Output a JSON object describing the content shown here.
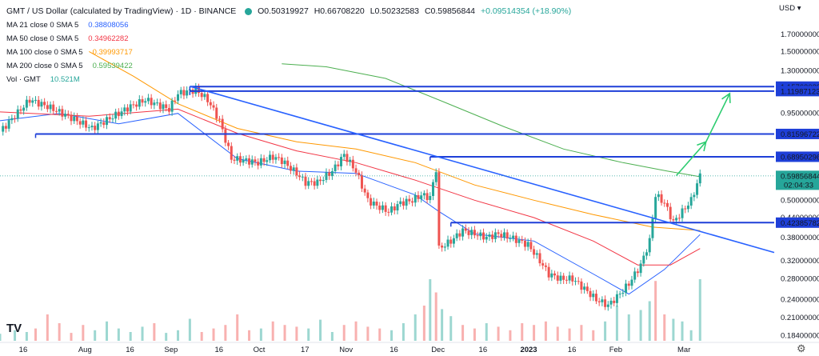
{
  "header": {
    "title": "GMT / US Dollar (calculated by TradingView) · 1D · BINANCE",
    "ohlc": {
      "o": "O0.50319927",
      "h": "H0.66708220",
      "l": "L0.50232583",
      "c": "C0.59856844",
      "chg": "+0.09514354 (+18.90%)"
    },
    "currency": "USD",
    "indicators": [
      {
        "label": "MA 21 close 0 SMA 5",
        "value": "0.38808056",
        "color": "#2962ff"
      },
      {
        "label": "MA 50 close 0 SMA 5",
        "value": "0.34962282",
        "color": "#f23645"
      },
      {
        "label": "MA 100 close 0 SMA 5",
        "value": "0.39993717",
        "color": "#ff9800"
      },
      {
        "label": "MA 200 close 0 SMA 5",
        "value": "0.59539422",
        "color": "#4caf50"
      },
      {
        "label": "Vol · GMT",
        "value": "10.521M",
        "color": "#26a69a"
      }
    ]
  },
  "chart_data": {
    "type": "candlestick",
    "y_axis_scale": "log",
    "ylim": [
      0.175,
      1.95
    ],
    "price_ticks": [
      "1.70000000",
      "1.50000000",
      "1.30000000",
      "1.15763029",
      "1.11987123",
      "0.95000000",
      "0.81596722",
      "0.68950296",
      "0.59856844",
      "0.50000000",
      "0.44000000",
      "0.42385782",
      "0.38000000",
      "0.32000000",
      "0.28000000",
      "0.24000000",
      "0.21000000",
      "0.18400000"
    ],
    "price_labels": [
      {
        "value": 1.15763029,
        "text": "1.15763029"
      },
      {
        "value": 1.11987123,
        "text": "1.11987123"
      },
      {
        "value": 0.81596722,
        "text": "0.81596722"
      },
      {
        "value": 0.68950296,
        "text": "0.68950296"
      },
      {
        "value": 0.42385782,
        "text": "0.42385782"
      }
    ],
    "last_price": {
      "value": 0.59856844,
      "text": "0.59856844",
      "countdown": "02:04:33"
    },
    "time_ticks": [
      "16",
      "Aug",
      "16",
      "Sep",
      "16",
      "Oct",
      "17",
      "Nov",
      "16",
      "Dec",
      "16",
      "2023",
      "16",
      "Feb",
      "Mar"
    ],
    "price_path": [
      [
        0,
        0.83
      ],
      [
        10,
        1.05
      ],
      [
        16,
        1.0
      ],
      [
        24,
        0.92
      ],
      [
        31,
        0.85
      ],
      [
        40,
        0.95
      ],
      [
        44,
        1.0
      ],
      [
        49,
        1.05
      ],
      [
        57,
        0.98
      ],
      [
        60,
        1.1
      ],
      [
        66,
        1.13
      ],
      [
        70,
        1.05
      ],
      [
        74,
        0.9
      ],
      [
        78,
        0.68
      ],
      [
        83,
        0.67
      ],
      [
        87,
        0.66
      ],
      [
        92,
        0.69
      ],
      [
        95,
        0.67
      ],
      [
        100,
        0.61
      ],
      [
        103,
        0.57
      ],
      [
        107,
        0.57
      ],
      [
        112,
        0.62
      ],
      [
        116,
        0.7
      ],
      [
        120,
        0.62
      ],
      [
        124,
        0.5
      ],
      [
        127,
        0.48
      ],
      [
        131,
        0.46
      ],
      [
        135,
        0.49
      ],
      [
        139,
        0.5
      ],
      [
        142,
        0.52
      ],
      [
        145,
        0.51
      ],
      [
        147,
        0.63
      ],
      [
        148,
        0.35
      ],
      [
        152,
        0.37
      ],
      [
        156,
        0.4
      ],
      [
        160,
        0.39
      ],
      [
        164,
        0.38
      ],
      [
        168,
        0.39
      ],
      [
        172,
        0.38
      ],
      [
        175,
        0.37
      ],
      [
        178,
        0.36
      ],
      [
        181,
        0.33
      ],
      [
        185,
        0.29
      ],
      [
        189,
        0.28
      ],
      [
        193,
        0.28
      ],
      [
        197,
        0.26
      ],
      [
        201,
        0.24
      ],
      [
        205,
        0.23
      ],
      [
        208,
        0.245
      ],
      [
        212,
        0.27
      ],
      [
        216,
        0.31
      ],
      [
        219,
        0.37
      ],
      [
        221,
        0.52
      ],
      [
        224,
        0.49
      ],
      [
        227,
        0.425
      ],
      [
        230,
        0.46
      ],
      [
        233,
        0.5
      ],
      [
        236,
        0.6
      ]
    ],
    "ma_series": [
      {
        "name": "MA 21",
        "color": "#2962ff",
        "points": [
          [
            0,
            0.9
          ],
          [
            20,
            0.95
          ],
          [
            40,
            0.88
          ],
          [
            60,
            0.95
          ],
          [
            80,
            0.68
          ],
          [
            100,
            0.62
          ],
          [
            120,
            0.61
          ],
          [
            140,
            0.52
          ],
          [
            148,
            0.46
          ],
          [
            160,
            0.39
          ],
          [
            180,
            0.37
          ],
          [
            200,
            0.29
          ],
          [
            212,
            0.25
          ],
          [
            224,
            0.3
          ],
          [
            236,
            0.388
          ]
        ]
      },
      {
        "name": "MA 50",
        "color": "#f23645",
        "points": [
          [
            0,
            0.96
          ],
          [
            30,
            0.93
          ],
          [
            60,
            0.98
          ],
          [
            80,
            0.82
          ],
          [
            100,
            0.72
          ],
          [
            120,
            0.66
          ],
          [
            140,
            0.58
          ],
          [
            160,
            0.5
          ],
          [
            180,
            0.44
          ],
          [
            200,
            0.37
          ],
          [
            215,
            0.31
          ],
          [
            226,
            0.31
          ],
          [
            236,
            0.35
          ]
        ]
      },
      {
        "name": "MA 100",
        "color": "#ff9800",
        "points": [
          [
            30,
            1.5
          ],
          [
            45,
            1.25
          ],
          [
            60,
            1.02
          ],
          [
            80,
            0.85
          ],
          [
            100,
            0.77
          ],
          [
            120,
            0.73
          ],
          [
            140,
            0.66
          ],
          [
            160,
            0.56
          ],
          [
            180,
            0.5
          ],
          [
            200,
            0.45
          ],
          [
            220,
            0.41
          ],
          [
            236,
            0.4
          ]
        ]
      },
      {
        "name": "MA 200",
        "color": "#4caf50",
        "points": [
          [
            95,
            1.37
          ],
          [
            110,
            1.34
          ],
          [
            130,
            1.23
          ],
          [
            150,
            1.03
          ],
          [
            170,
            0.86
          ],
          [
            190,
            0.73
          ],
          [
            210,
            0.66
          ],
          [
            225,
            0.62
          ],
          [
            236,
            0.595
          ]
        ]
      }
    ],
    "volume": [
      [
        0,
        8
      ],
      [
        5,
        12
      ],
      [
        9,
        10
      ],
      [
        12,
        14
      ],
      [
        16,
        30
      ],
      [
        20,
        20
      ],
      [
        24,
        9
      ],
      [
        28,
        18
      ],
      [
        32,
        12
      ],
      [
        36,
        22
      ],
      [
        40,
        14
      ],
      [
        44,
        10
      ],
      [
        48,
        16
      ],
      [
        52,
        20
      ],
      [
        56,
        9
      ],
      [
        60,
        12
      ],
      [
        64,
        25
      ],
      [
        68,
        10
      ],
      [
        72,
        14
      ],
      [
        76,
        18
      ],
      [
        80,
        30
      ],
      [
        84,
        12
      ],
      [
        88,
        14
      ],
      [
        92,
        22
      ],
      [
        96,
        18
      ],
      [
        100,
        16
      ],
      [
        104,
        14
      ],
      [
        108,
        24
      ],
      [
        112,
        10
      ],
      [
        116,
        18
      ],
      [
        120,
        22
      ],
      [
        124,
        16
      ],
      [
        128,
        14
      ],
      [
        132,
        12
      ],
      [
        136,
        20
      ],
      [
        140,
        30
      ],
      [
        143,
        40
      ],
      [
        145,
        70
      ],
      [
        147,
        55
      ],
      [
        149,
        36
      ],
      [
        152,
        28
      ],
      [
        156,
        18
      ],
      [
        160,
        14
      ],
      [
        164,
        20
      ],
      [
        168,
        16
      ],
      [
        172,
        12
      ],
      [
        176,
        20
      ],
      [
        180,
        18
      ],
      [
        184,
        22
      ],
      [
        188,
        16
      ],
      [
        192,
        14
      ],
      [
        196,
        18
      ],
      [
        200,
        12
      ],
      [
        204,
        22
      ],
      [
        208,
        40
      ],
      [
        212,
        30
      ],
      [
        216,
        35
      ],
      [
        219,
        45
      ],
      [
        221,
        68
      ],
      [
        224,
        30
      ],
      [
        227,
        25
      ],
      [
        230,
        22
      ],
      [
        233,
        12
      ],
      [
        236,
        70
      ]
    ],
    "trendlines": [
      {
        "from": [
          64,
          1.16
        ],
        "to": [
          261,
          0.34
        ],
        "color": "#2962ff"
      }
    ],
    "horizontal_levels": [
      {
        "from": 64,
        "value": 1.15763029,
        "color": "#1e3fd8"
      },
      {
        "from": 64,
        "value": 1.11987123,
        "color": "#1e3fd8"
      },
      {
        "from": 12,
        "value": 0.81596722,
        "color": "#1e3fd8"
      },
      {
        "from": 145,
        "value": 0.68950296,
        "color": "#1e3fd8"
      },
      {
        "from": 152,
        "value": 0.42385782,
        "color": "#1e3fd8"
      }
    ],
    "arrows": [
      {
        "path": [
          [
            228,
            0.6
          ],
          [
            238,
            0.77
          ],
          [
            246,
            1.1
          ]
        ],
        "color": "#2ecc71"
      }
    ]
  }
}
